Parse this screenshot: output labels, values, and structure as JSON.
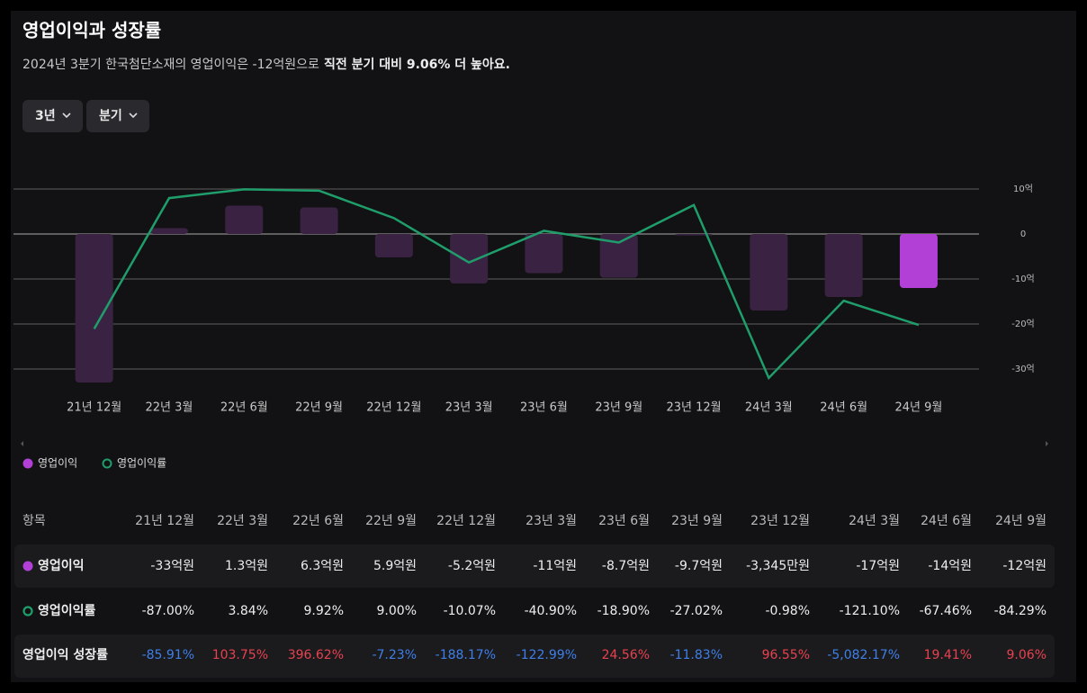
{
  "header": {
    "title": "영업이익과 성장률",
    "subtitle": "2024년 3분기 한국첨단소재의 영업이익은 -12억원으로",
    "subtitle_emphasis": "직전 분기 대비 9.06% 더 높아요."
  },
  "filters": [
    "3년",
    "분기"
  ],
  "chart_data": {
    "type": "bar",
    "categories": [
      "21년 12월",
      "22년 3월",
      "22년 6월",
      "22년 9월",
      "22년 12월",
      "23년 3월",
      "23년 6월",
      "23년 9월",
      "23년 12월",
      "24년 3월",
      "24년 6월",
      "24년 9월"
    ],
    "series": [
      {
        "name": "영업이익",
        "type": "bar",
        "color": "#b23fd6",
        "colors": [
          "#3a2342",
          "#3a2342",
          "#3a2342",
          "#3a2342",
          "#3a2342",
          "#3a2342",
          "#3a2342",
          "#3a2342",
          "#3a2342",
          "#3a2342",
          "#3a2342",
          "#b23fd6"
        ],
        "values": [
          -33,
          1.3,
          6.3,
          5.9,
          -5.2,
          -11,
          -8.7,
          -9.7,
          -0.3345,
          -17,
          -14,
          -12
        ]
      },
      {
        "name": "영업이익률",
        "type": "line",
        "axis": "y2",
        "color": "#1f9e6b",
        "values": [
          -87.0,
          3.84,
          9.92,
          9.0,
          -10.07,
          -40.9,
          -18.9,
          -27.02,
          -0.98,
          -121.1,
          -67.46,
          -84.29
        ]
      }
    ],
    "ylim": [
      -35,
      12
    ],
    "yticks": [
      {
        "value": 10,
        "label": "10억"
      },
      0,
      {
        "value": -10,
        "label": "-10억"
      },
      {
        "value": -20,
        "label": "-20억"
      },
      {
        "value": -30,
        "label": "-30억"
      }
    ],
    "y2lim": [
      -130.5,
      16.4
    ],
    "grid": true
  },
  "table": {
    "columns": [
      "항목",
      "21년 12월",
      "22년 3월",
      "22년 6월",
      "22년 9월",
      "22년 12월",
      "23년 3월",
      "23년 6월",
      "23년 9월",
      "23년 12월",
      "24년 3월",
      "24년 6월",
      "24년 9월"
    ],
    "rows": [
      [
        "영업이익",
        "-33억원",
        "1.3억원",
        "6.3억원",
        "5.9억원",
        "-5.2억원",
        "-11억원",
        "-8.7억원",
        "-9.7억원",
        "-3,345만원",
        "-17억원",
        "-14억원",
        "-12억원"
      ],
      [
        "영업이익률",
        "-87.00%",
        "3.84%",
        "9.92%",
        "9.00%",
        "-10.07%",
        "-40.90%",
        "-18.90%",
        "-27.02%",
        "-0.98%",
        "-121.10%",
        "-67.46%",
        "-84.29%"
      ],
      [
        "영업이익 성장률",
        "-85.91%",
        "103.75%",
        "396.62%",
        "-7.23%",
        "-188.17%",
        "-122.99%",
        "24.56%",
        "-11.83%",
        "96.55%",
        "-5,082.17%",
        "19.41%",
        "9.06%"
      ]
    ]
  }
}
